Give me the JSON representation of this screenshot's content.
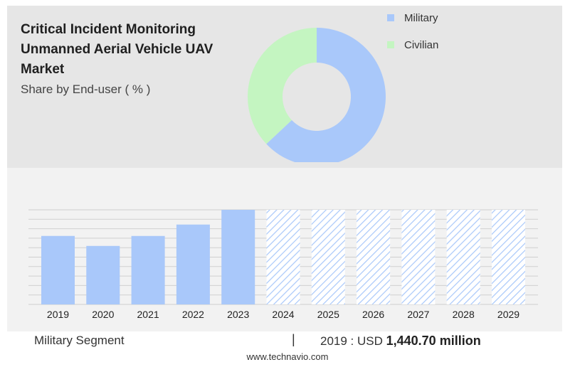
{
  "chart_data": [
    {
      "type": "pie",
      "title": "Critical Incident Monitoring Unmanned Aerial Vehicle UAV Market",
      "subtitle": "Share by End-user ( % )",
      "labels": [
        "Military",
        "Civilian"
      ],
      "values": [
        63,
        37
      ],
      "colors": [
        "#a9c8fa",
        "#c4f5c1"
      ],
      "legend_position": "top-right"
    },
    {
      "type": "bar",
      "categories": [
        "2019",
        "2020",
        "2021",
        "2022",
        "2023",
        "2024",
        "2025",
        "2026",
        "2027",
        "2028",
        "2029"
      ],
      "series": [
        {
          "values": [
            1440.7,
            1230,
            1440,
            1680,
            1990,
            1990,
            1990,
            1990,
            1990,
            1990,
            1990
          ]
        }
      ],
      "forecast_from": "2024",
      "ylim": [
        0,
        1990
      ],
      "grid": true,
      "bar_color": "#a9c8fa"
    }
  ],
  "footer": {
    "segment_label": "Military Segment",
    "separator": "|",
    "value_prefix": "2019 : USD",
    "value_bold": "1,440.70 million"
  },
  "source": "www.technavio.com"
}
